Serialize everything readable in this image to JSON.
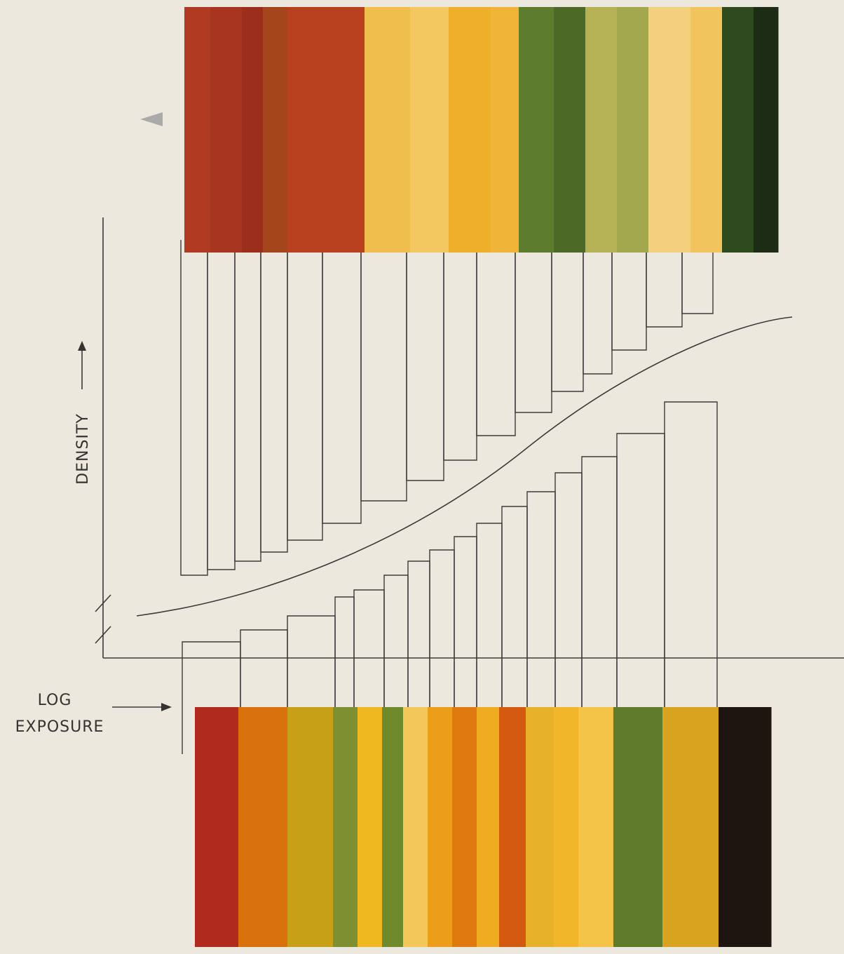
{
  "axes": {
    "y_label": "DENSITY",
    "x_label_line1": "LOG",
    "x_label_line2": "EXPOSURE"
  }
}
